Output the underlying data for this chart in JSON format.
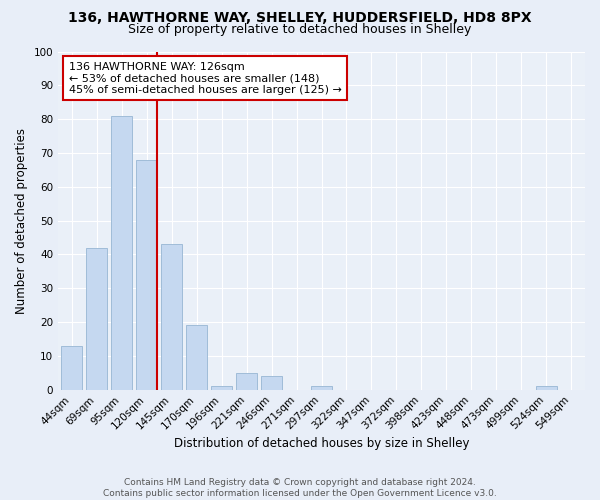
{
  "title": "136, HAWTHORNE WAY, SHELLEY, HUDDERSFIELD, HD8 8PX",
  "subtitle": "Size of property relative to detached houses in Shelley",
  "xlabel": "Distribution of detached houses by size in Shelley",
  "ylabel": "Number of detached properties",
  "categories": [
    "44sqm",
    "69sqm",
    "95sqm",
    "120sqm",
    "145sqm",
    "170sqm",
    "196sqm",
    "221sqm",
    "246sqm",
    "271sqm",
    "297sqm",
    "322sqm",
    "347sqm",
    "372sqm",
    "398sqm",
    "423sqm",
    "448sqm",
    "473sqm",
    "499sqm",
    "524sqm",
    "549sqm"
  ],
  "values": [
    13,
    42,
    81,
    68,
    43,
    19,
    1,
    5,
    4,
    0,
    1,
    0,
    0,
    0,
    0,
    0,
    0,
    0,
    0,
    1,
    0
  ],
  "bar_color": "#c5d8f0",
  "bar_edgecolor": "#a0bcd8",
  "vline_color": "#cc0000",
  "vline_pos": 3.43,
  "annotation_line1": "136 HAWTHORNE WAY: 126sqm",
  "annotation_line2": "← 53% of detached houses are smaller (148)",
  "annotation_line3": "45% of semi-detached houses are larger (125) →",
  "annotation_box_edgecolor": "#cc0000",
  "annotation_box_facecolor": "#ffffff",
  "ylim": [
    0,
    100
  ],
  "yticks": [
    0,
    10,
    20,
    30,
    40,
    50,
    60,
    70,
    80,
    90,
    100
  ],
  "bg_color": "#e8eef8",
  "plot_bg_color": "#eaf0f8",
  "footer": "Contains HM Land Registry data © Crown copyright and database right 2024.\nContains public sector information licensed under the Open Government Licence v3.0.",
  "title_fontsize": 10,
  "subtitle_fontsize": 9,
  "axis_label_fontsize": 8.5,
  "tick_fontsize": 7.5,
  "annotation_fontsize": 8,
  "footer_fontsize": 6.5
}
